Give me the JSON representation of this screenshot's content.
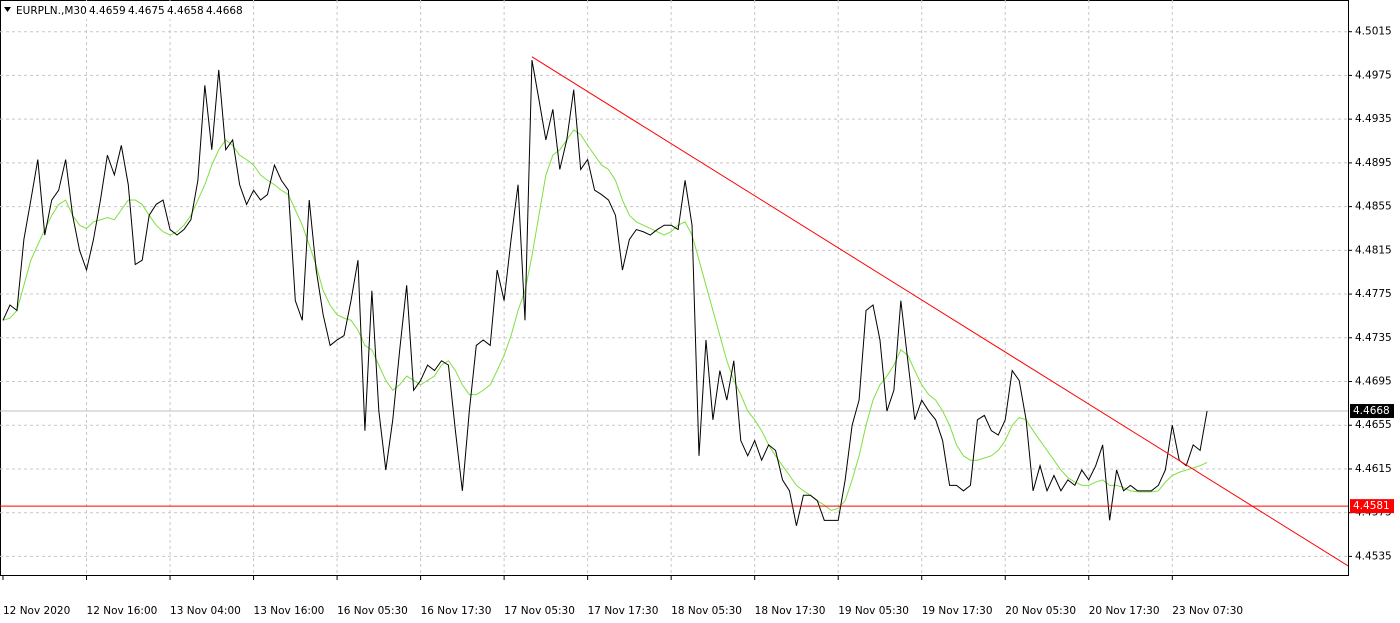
{
  "chart_data": {
    "type": "line",
    "title": "EURPLN.,M30",
    "ohlc": [
      4.4659,
      4.4675,
      4.4658,
      4.4668
    ],
    "categories": [
      "12 Nov 2020",
      null,
      null,
      null,
      null,
      null,
      null,
      null,
      null,
      null,
      null,
      null,
      "12 Nov 16:00",
      null,
      null,
      null,
      null,
      null,
      null,
      null,
      null,
      null,
      null,
      null,
      "13 Nov 04:00",
      null,
      null,
      null,
      null,
      null,
      null,
      null,
      null,
      null,
      null,
      null,
      "13 Nov 16:00",
      null,
      null,
      null,
      null,
      null,
      null,
      null,
      null,
      null,
      null,
      null,
      "16 Nov 05:30",
      null,
      null,
      null,
      null,
      null,
      null,
      null,
      null,
      null,
      null,
      null,
      "16 Nov 17:30",
      null,
      null,
      null,
      null,
      null,
      null,
      null,
      null,
      null,
      null,
      null,
      "17 Nov 05:30",
      null,
      null,
      null,
      null,
      null,
      null,
      null,
      null,
      null,
      null,
      null,
      "17 Nov 17:30",
      null,
      null,
      null,
      null,
      null,
      null,
      null,
      null,
      null,
      null,
      null,
      "18 Nov 05:30",
      null,
      null,
      null,
      null,
      null,
      null,
      null,
      null,
      null,
      null,
      null,
      "18 Nov 17:30",
      null,
      null,
      null,
      null,
      null,
      null,
      null,
      null,
      null,
      null,
      null,
      "19 Nov 05:30",
      null,
      null,
      null,
      null,
      null,
      null,
      null,
      null,
      null,
      null,
      null,
      "19 Nov 17:30",
      null,
      null,
      null,
      null,
      null,
      null,
      null,
      null,
      null,
      null,
      null,
      "20 Nov 05:30",
      null,
      null,
      null,
      null,
      null,
      null,
      null,
      null,
      null,
      null,
      null,
      "20 Nov 17:30",
      null,
      null,
      null,
      null,
      null,
      null,
      null,
      null,
      null,
      null,
      null,
      "23 Nov 07:30",
      null,
      null,
      null,
      null,
      null
    ],
    "series": [
      {
        "color": "#000000",
        "values": [
          4.4751,
          4.4765,
          4.476,
          4.4825,
          4.4861,
          4.4898,
          4.4829,
          4.4861,
          4.487,
          4.4898,
          4.4847,
          4.4815,
          4.4797,
          4.4825,
          4.4861,
          4.4902,
          4.4884,
          4.4911,
          4.4875,
          4.4802,
          4.4806,
          4.4847,
          4.4857,
          4.4861,
          4.4834,
          4.4829,
          4.4834,
          4.4843,
          4.4879,
          4.4966,
          4.4907,
          4.498,
          4.4907,
          4.4916,
          4.4875,
          4.4857,
          4.487,
          4.4861,
          4.4866,
          4.4893,
          4.4879,
          4.487,
          4.4769,
          4.4751,
          4.4861,
          4.4797,
          4.4756,
          4.4728,
          4.4733,
          4.4737,
          4.4769,
          4.4806,
          4.465,
          4.4778,
          4.4668,
          4.4614,
          4.466,
          4.4724,
          4.4783,
          4.4687,
          4.4696,
          4.471,
          4.4705,
          4.4714,
          4.471,
          4.465,
          4.4595,
          4.4668,
          4.4728,
          4.4733,
          4.4728,
          4.4797,
          4.4769,
          4.4825,
          4.4875,
          4.4751,
          4.4989,
          4.4953,
          4.4916,
          4.4944,
          4.4889,
          4.4916,
          4.4962,
          4.4889,
          4.4898,
          4.487,
          4.4866,
          4.4861,
          4.4847,
          4.4797,
          4.4825,
          4.4834,
          4.4832,
          4.4829,
          4.4834,
          4.4838,
          4.4838,
          4.4834,
          4.4879,
          4.4838,
          4.4627,
          4.4733,
          4.466,
          4.4705,
          4.4678,
          4.4714,
          4.4641,
          4.4627,
          4.4641,
          4.4623,
          4.4637,
          4.4632,
          4.4605,
          4.4595,
          4.4563,
          4.4591,
          4.4591,
          4.4586,
          4.4568,
          4.4568,
          4.4568,
          4.4605,
          4.4655,
          4.4678,
          4.476,
          4.4765,
          4.4733,
          4.4668,
          4.4687,
          4.4769,
          4.4714,
          4.466,
          4.4678,
          4.4668,
          4.466,
          4.4641,
          4.46,
          4.46,
          4.4595,
          4.46,
          4.466,
          4.4664,
          4.465,
          4.4646,
          4.466,
          4.4705,
          4.4696,
          4.466,
          4.4595,
          4.4618,
          4.4595,
          4.4609,
          4.4595,
          4.4605,
          4.46,
          4.4614,
          4.4605,
          4.4618,
          4.4637,
          4.4568,
          4.4614,
          4.4595,
          4.46,
          4.4595,
          4.4595,
          4.4595,
          4.46,
          4.4614,
          4.4655,
          4.4623,
          4.4618,
          4.4637,
          4.4632,
          4.4668
        ]
      },
      {
        "color": "#7ee040",
        "values": [
          4.4751,
          4.4753,
          4.476,
          4.4783,
          4.4806,
          4.482,
          4.4834,
          4.4847,
          4.4857,
          4.4861,
          4.4847,
          4.4838,
          4.4835,
          4.4841,
          4.4843,
          4.4845,
          4.4843,
          4.4852,
          4.4861,
          4.4861,
          4.4857,
          4.4847,
          4.4838,
          4.4832,
          4.4829,
          4.4832,
          4.4838,
          4.4847,
          4.4861,
          4.4875,
          4.4893,
          4.4907,
          4.4916,
          4.4911,
          4.4902,
          4.4898,
          4.4893,
          4.4884,
          4.4879,
          4.4875,
          4.487,
          4.4866,
          4.4852,
          4.4838,
          4.482,
          4.4801,
          4.4778,
          4.4765,
          4.4756,
          4.4753,
          4.4751,
          4.4742,
          4.4728,
          4.4724,
          4.471,
          4.4696,
          4.4687,
          4.4692,
          4.47,
          4.4696,
          4.4692,
          4.4696,
          4.47,
          4.471,
          4.4714,
          4.4705,
          4.4692,
          4.4683,
          4.4683,
          4.4687,
          4.4692,
          4.4705,
          4.4719,
          4.4737,
          4.476,
          4.4778,
          4.481,
          4.4847,
          4.4884,
          4.4902,
          4.4907,
          4.4916,
          4.4925,
          4.4921,
          4.4911,
          4.4902,
          4.4893,
          4.4889,
          4.4879,
          4.4861,
          4.4847,
          4.4841,
          4.4838,
          4.4835,
          4.4832,
          4.4829,
          4.4832,
          4.4838,
          4.4841,
          4.4829,
          4.4806,
          4.4783,
          4.476,
          4.4737,
          4.4714,
          4.4696,
          4.4683,
          4.4668,
          4.466,
          4.465,
          4.4637,
          4.4627,
          4.4618,
          4.4609,
          4.46,
          4.4595,
          4.4591,
          4.4586,
          4.4582,
          4.4577,
          4.4579,
          4.4586,
          4.4605,
          4.4627,
          4.4655,
          4.4678,
          4.4692,
          4.47,
          4.471,
          4.4724,
          4.4719,
          4.4705,
          4.4692,
          4.4683,
          4.4678,
          4.4668,
          4.4655,
          4.4637,
          4.4627,
          4.4623,
          4.4623,
          4.4625,
          4.4627,
          4.4632,
          4.4641,
          4.4655,
          4.4662,
          4.466,
          4.465,
          4.4641,
          4.4632,
          4.4623,
          4.4614,
          4.4607,
          4.4603,
          4.46,
          4.46,
          4.4603,
          4.4605,
          4.46,
          4.46,
          4.4598,
          4.4595,
          4.4594,
          4.4594,
          4.4594,
          4.4595,
          4.4603,
          4.4609,
          4.4612,
          4.4614,
          4.4616,
          4.4618,
          4.4621
        ]
      }
    ],
    "ylim": [
      4.4518,
      4.5044
    ],
    "yticks": [
      4.5015,
      4.4975,
      4.4935,
      4.4895,
      4.4855,
      4.4815,
      4.4775,
      4.4735,
      4.4695,
      4.4655,
      4.4615,
      4.4575,
      4.4535
    ],
    "grid": true,
    "last_price": 4.4668,
    "last_price_color": "#c0c0c0",
    "hline": {
      "value": 4.4581,
      "color": "#ff0000"
    },
    "trendline": {
      "color": "#ff0000",
      "points": [
        [
          76,
          4.4992
        ],
        [
          145,
          4.4718
        ]
      ]
    }
  }
}
